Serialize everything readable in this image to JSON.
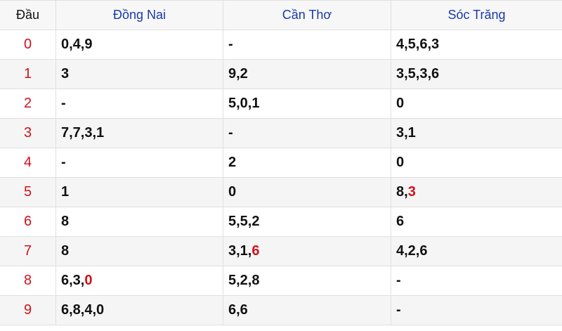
{
  "header": {
    "dau": "Đầu",
    "columns": [
      "Đồng Nai",
      "Cần Thơ",
      "Sóc Trăng"
    ]
  },
  "colors": {
    "accent_red": "#d0121b",
    "header_blue": "#1a3aa8"
  },
  "rows": [
    {
      "dau": "0",
      "cells": [
        [
          {
            "t": "0,4,9"
          }
        ],
        [
          {
            "t": "-"
          }
        ],
        [
          {
            "t": "4,5,6,3"
          }
        ]
      ]
    },
    {
      "dau": "1",
      "cells": [
        [
          {
            "t": "3"
          }
        ],
        [
          {
            "t": "9,2"
          }
        ],
        [
          {
            "t": "3,5,3,6"
          }
        ]
      ]
    },
    {
      "dau": "2",
      "cells": [
        [
          {
            "t": "-"
          }
        ],
        [
          {
            "t": "5,0,1"
          }
        ],
        [
          {
            "t": "0"
          }
        ]
      ]
    },
    {
      "dau": "3",
      "cells": [
        [
          {
            "t": "7,7,3,1"
          }
        ],
        [
          {
            "t": "-"
          }
        ],
        [
          {
            "t": "3,1"
          }
        ]
      ]
    },
    {
      "dau": "4",
      "cells": [
        [
          {
            "t": "-"
          }
        ],
        [
          {
            "t": "2"
          }
        ],
        [
          {
            "t": "0"
          }
        ]
      ]
    },
    {
      "dau": "5",
      "cells": [
        [
          {
            "t": "1"
          }
        ],
        [
          {
            "t": "0"
          }
        ],
        [
          {
            "t": "8,"
          },
          {
            "t": "3",
            "red": true
          }
        ]
      ]
    },
    {
      "dau": "6",
      "cells": [
        [
          {
            "t": "8"
          }
        ],
        [
          {
            "t": "5,5,2"
          }
        ],
        [
          {
            "t": "6"
          }
        ]
      ]
    },
    {
      "dau": "7",
      "cells": [
        [
          {
            "t": "8"
          }
        ],
        [
          {
            "t": "3,1,"
          },
          {
            "t": "6",
            "red": true
          }
        ],
        [
          {
            "t": "4,2,6"
          }
        ]
      ]
    },
    {
      "dau": "8",
      "cells": [
        [
          {
            "t": "6,3,"
          },
          {
            "t": "0",
            "red": true
          }
        ],
        [
          {
            "t": "5,2,8"
          }
        ],
        [
          {
            "t": "-"
          }
        ]
      ]
    },
    {
      "dau": "9",
      "cells": [
        [
          {
            "t": "6,8,4,0"
          }
        ],
        [
          {
            "t": "6,6"
          }
        ],
        [
          {
            "t": "-"
          }
        ]
      ]
    }
  ]
}
